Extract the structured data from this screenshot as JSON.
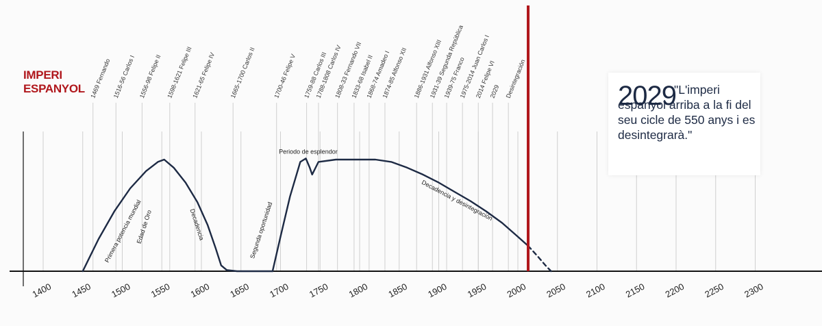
{
  "title": {
    "line1": "IMPERI",
    "line2": "ESPANYOL"
  },
  "quote": {
    "year": "2029",
    "text": "\"L'imperi espanyol arriba a la fi del seu cicle de 550 anys i es desintegrarà.\""
  },
  "colors": {
    "curve": "#1d2a44",
    "accent": "#b0171c",
    "grid": "#cfcfcf",
    "axis": "#111111"
  },
  "chart_data": {
    "type": "line",
    "title": "IMPERI ESPANYOL",
    "xlabel": "",
    "ylabel": "",
    "xlim": [
      1390,
      2330
    ],
    "ylim": [
      0,
      100
    ],
    "x_ticks": [
      1400,
      1450,
      1500,
      1550,
      1600,
      1650,
      1700,
      1750,
      1800,
      1850,
      1900,
      1950,
      2000,
      2050,
      2100,
      2150,
      2200,
      2250,
      2300
    ],
    "grid": "vertical",
    "series": [
      {
        "style": "solid",
        "x": [
          1450,
          1470,
          1490,
          1510,
          1530,
          1545,
          1553,
          1565,
          1580,
          1595,
          1608,
          1618,
          1625,
          1632,
          1645,
          1690
        ],
        "y": [
          0,
          28,
          52,
          72,
          87,
          95,
          97,
          90,
          77,
          60,
          40,
          20,
          5,
          1,
          0,
          0
        ]
      },
      {
        "style": "solid",
        "x": [
          1690,
          1700,
          1712,
          1725,
          1732,
          1737,
          1740,
          1748,
          1770,
          1800,
          1820,
          1840,
          1860,
          1880,
          1900,
          1920,
          1940,
          1960,
          1980,
          2000,
          2013
        ],
        "y": [
          0,
          30,
          65,
          95,
          98,
          90,
          84,
          95,
          97,
          97,
          97,
          95,
          90,
          84,
          77,
          69,
          61,
          52,
          42,
          30,
          22
        ]
      },
      {
        "style": "dashed",
        "x": [
          2013,
          2025,
          2035,
          2042
        ],
        "y": [
          22,
          13,
          5,
          0
        ]
      }
    ],
    "reference_line": {
      "x": 2013,
      "color": "#b0171c"
    },
    "labels": [
      {
        "x": 1463,
        "text": "1469 Fernando"
      },
      {
        "x": 1492,
        "text": "1516-56 Carlos I"
      },
      {
        "x": 1525,
        "text": "1556-98 Felipe II"
      },
      {
        "x": 1560,
        "text": "1598-1621 Felipe III"
      },
      {
        "x": 1592,
        "text": "1621-65 Felipe IV"
      },
      {
        "x": 1640,
        "text": "1665-1700 Carlos II"
      },
      {
        "x": 1695,
        "text": "1700-46 Felipe V"
      },
      {
        "x": 1733,
        "text": "1759-88 Carlos III"
      },
      {
        "x": 1748,
        "text": "1788-1808 Carlos IV"
      },
      {
        "x": 1772,
        "text": "1808-33 Fernando VII"
      },
      {
        "x": 1793,
        "text": "1833-68 Isabel II"
      },
      {
        "x": 1812,
        "text": "1868-74 Amadeo I"
      },
      {
        "x": 1832,
        "text": "1874-85 Alfonso XII"
      },
      {
        "x": 1872,
        "text": "1886-1931 Alfonso XIII"
      },
      {
        "x": 1892,
        "text": "1931-39 Segunda República"
      },
      {
        "x": 1910,
        "text": "1939-75 Franco"
      },
      {
        "x": 1930,
        "text": "1975-2014 Juan Carlos I"
      },
      {
        "x": 1950,
        "text": "2014 Felipe VI"
      },
      {
        "x": 1968,
        "text": "2029"
      },
      {
        "x": 1988,
        "text": "Desintegración"
      }
    ],
    "annotations": [
      {
        "x": 1503,
        "y": 34,
        "text": "Primera potencia mundial"
      },
      {
        "x": 1530,
        "y": 38,
        "text": "Edad de Oro"
      },
      {
        "x": 1592,
        "y": 40,
        "text": "Decadencia"
      },
      {
        "x": 1678,
        "y": 35,
        "text": "Segunda oportunidad"
      },
      {
        "x": 1735,
        "y": 102,
        "text": "Periodo de esplendor"
      },
      {
        "x": 1922,
        "y": 60,
        "text": "Decadencia y desintegración"
      }
    ]
  }
}
